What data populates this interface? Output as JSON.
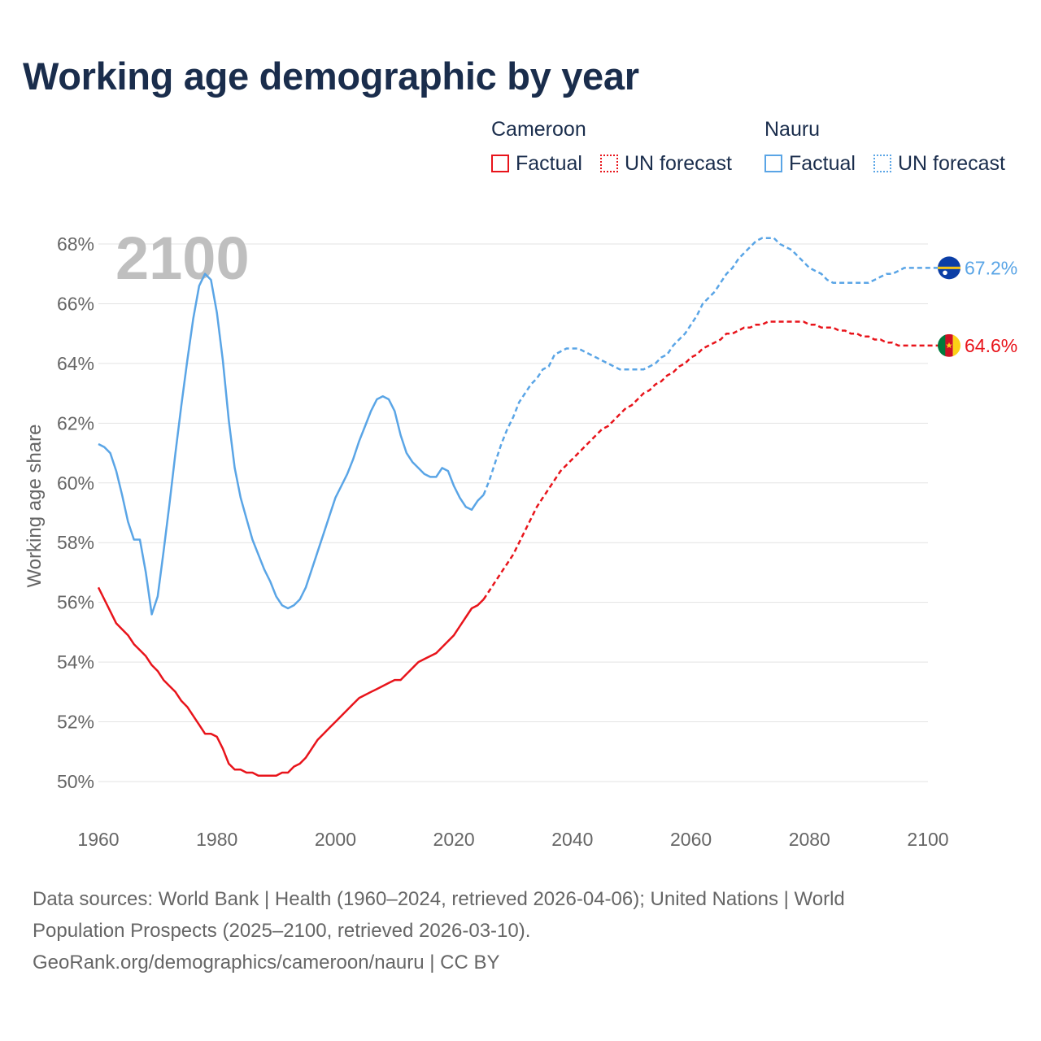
{
  "title": "Working age demographic by year",
  "legend": {
    "groups": [
      {
        "name": "Cameroon",
        "factual_label": "Factual",
        "forecast_label": "UN forecast"
      },
      {
        "name": "Nauru",
        "factual_label": "Factual",
        "forecast_label": "UN forecast"
      }
    ]
  },
  "footer": {
    "line1": "Data sources: World Bank | Health (1960–2024, retrieved 2026-04-06); United Nations | World",
    "line2": "Population Prospects (2025–2100, retrieved 2026-03-10).",
    "line3": "GeoRank.org/demographics/cameroon/nauru | CC BY"
  },
  "colors": {
    "cameroon": "#e8141b",
    "nauru": "#5aa5e6",
    "title": "#1a2d4c",
    "year_watermark": "#bfbfbf"
  },
  "chart_data": {
    "type": "line",
    "title": "Working age demographic by year",
    "ylabel": "Working age share",
    "xlabel": "",
    "year_label": "2100",
    "xlim": [
      1960,
      2100
    ],
    "ylim": [
      50,
      68
    ],
    "x_ticks": [
      "1960",
      "1980",
      "2000",
      "2020",
      "2040",
      "2060",
      "2080",
      "2100"
    ],
    "y_ticks": [
      "50%",
      "52%",
      "54%",
      "56%",
      "58%",
      "60%",
      "62%",
      "64%",
      "66%",
      "68%"
    ],
    "grid": true,
    "forecast_start": 2025,
    "series": [
      {
        "name": "Cameroon",
        "end_label": "64.6%",
        "points": [
          [
            1960,
            56.5
          ],
          [
            1961,
            56.1
          ],
          [
            1962,
            55.7
          ],
          [
            1963,
            55.3
          ],
          [
            1964,
            55.1
          ],
          [
            1965,
            54.9
          ],
          [
            1966,
            54.6
          ],
          [
            1967,
            54.4
          ],
          [
            1968,
            54.2
          ],
          [
            1969,
            53.9
          ],
          [
            1970,
            53.7
          ],
          [
            1971,
            53.4
          ],
          [
            1972,
            53.2
          ],
          [
            1973,
            53.0
          ],
          [
            1974,
            52.7
          ],
          [
            1975,
            52.5
          ],
          [
            1976,
            52.2
          ],
          [
            1977,
            51.9
          ],
          [
            1978,
            51.6
          ],
          [
            1979,
            51.6
          ],
          [
            1980,
            51.5
          ],
          [
            1981,
            51.1
          ],
          [
            1982,
            50.6
          ],
          [
            1983,
            50.4
          ],
          [
            1984,
            50.4
          ],
          [
            1985,
            50.3
          ],
          [
            1986,
            50.3
          ],
          [
            1987,
            50.2
          ],
          [
            1988,
            50.2
          ],
          [
            1989,
            50.2
          ],
          [
            1990,
            50.2
          ],
          [
            1991,
            50.3
          ],
          [
            1992,
            50.3
          ],
          [
            1993,
            50.5
          ],
          [
            1994,
            50.6
          ],
          [
            1995,
            50.8
          ],
          [
            1996,
            51.1
          ],
          [
            1997,
            51.4
          ],
          [
            1998,
            51.6
          ],
          [
            1999,
            51.8
          ],
          [
            2000,
            52.0
          ],
          [
            2001,
            52.2
          ],
          [
            2002,
            52.4
          ],
          [
            2003,
            52.6
          ],
          [
            2004,
            52.8
          ],
          [
            2005,
            52.9
          ],
          [
            2006,
            53.0
          ],
          [
            2007,
            53.1
          ],
          [
            2008,
            53.2
          ],
          [
            2009,
            53.3
          ],
          [
            2010,
            53.4
          ],
          [
            2011,
            53.4
          ],
          [
            2012,
            53.6
          ],
          [
            2013,
            53.8
          ],
          [
            2014,
            54.0
          ],
          [
            2015,
            54.1
          ],
          [
            2016,
            54.2
          ],
          [
            2017,
            54.3
          ],
          [
            2018,
            54.5
          ],
          [
            2019,
            54.7
          ],
          [
            2020,
            54.9
          ],
          [
            2021,
            55.2
          ],
          [
            2022,
            55.5
          ],
          [
            2023,
            55.8
          ],
          [
            2024,
            55.9
          ],
          [
            2025,
            56.1
          ],
          [
            2026,
            56.4
          ],
          [
            2027,
            56.7
          ],
          [
            2028,
            57.0
          ],
          [
            2029,
            57.3
          ],
          [
            2030,
            57.6
          ],
          [
            2031,
            58.0
          ],
          [
            2032,
            58.4
          ],
          [
            2033,
            58.8
          ],
          [
            2034,
            59.2
          ],
          [
            2035,
            59.5
          ],
          [
            2036,
            59.8
          ],
          [
            2037,
            60.1
          ],
          [
            2038,
            60.4
          ],
          [
            2039,
            60.6
          ],
          [
            2040,
            60.8
          ],
          [
            2041,
            61.0
          ],
          [
            2042,
            61.2
          ],
          [
            2043,
            61.4
          ],
          [
            2044,
            61.6
          ],
          [
            2045,
            61.8
          ],
          [
            2046,
            61.9
          ],
          [
            2047,
            62.1
          ],
          [
            2048,
            62.3
          ],
          [
            2049,
            62.5
          ],
          [
            2050,
            62.6
          ],
          [
            2051,
            62.8
          ],
          [
            2052,
            63.0
          ],
          [
            2053,
            63.1
          ],
          [
            2054,
            63.3
          ],
          [
            2055,
            63.4
          ],
          [
            2056,
            63.6
          ],
          [
            2057,
            63.7
          ],
          [
            2058,
            63.9
          ],
          [
            2059,
            64.0
          ],
          [
            2060,
            64.2
          ],
          [
            2061,
            64.3
          ],
          [
            2062,
            64.5
          ],
          [
            2063,
            64.6
          ],
          [
            2064,
            64.7
          ],
          [
            2065,
            64.8
          ],
          [
            2066,
            65.0
          ],
          [
            2067,
            65.0
          ],
          [
            2068,
            65.1
          ],
          [
            2069,
            65.2
          ],
          [
            2070,
            65.2
          ],
          [
            2071,
            65.3
          ],
          [
            2072,
            65.3
          ],
          [
            2073,
            65.4
          ],
          [
            2074,
            65.4
          ],
          [
            2075,
            65.4
          ],
          [
            2076,
            65.4
          ],
          [
            2077,
            65.4
          ],
          [
            2078,
            65.4
          ],
          [
            2079,
            65.4
          ],
          [
            2080,
            65.3
          ],
          [
            2081,
            65.3
          ],
          [
            2082,
            65.2
          ],
          [
            2083,
            65.2
          ],
          [
            2084,
            65.2
          ],
          [
            2085,
            65.1
          ],
          [
            2086,
            65.1
          ],
          [
            2087,
            65.0
          ],
          [
            2088,
            65.0
          ],
          [
            2089,
            64.9
          ],
          [
            2090,
            64.9
          ],
          [
            2091,
            64.8
          ],
          [
            2092,
            64.8
          ],
          [
            2093,
            64.7
          ],
          [
            2094,
            64.7
          ],
          [
            2095,
            64.6
          ],
          [
            2096,
            64.6
          ],
          [
            2097,
            64.6
          ],
          [
            2098,
            64.6
          ],
          [
            2099,
            64.6
          ],
          [
            2100,
            64.6
          ]
        ]
      },
      {
        "name": "Nauru",
        "end_label": "67.2%",
        "points": [
          [
            1960,
            61.3
          ],
          [
            1961,
            61.2
          ],
          [
            1962,
            61.0
          ],
          [
            1963,
            60.4
          ],
          [
            1964,
            59.6
          ],
          [
            1965,
            58.7
          ],
          [
            1966,
            58.1
          ],
          [
            1967,
            58.1
          ],
          [
            1968,
            57.0
          ],
          [
            1969,
            55.6
          ],
          [
            1970,
            56.2
          ],
          [
            1971,
            57.7
          ],
          [
            1972,
            59.3
          ],
          [
            1973,
            61.0
          ],
          [
            1974,
            62.6
          ],
          [
            1975,
            64.1
          ],
          [
            1976,
            65.5
          ],
          [
            1977,
            66.6
          ],
          [
            1978,
            67.0
          ],
          [
            1979,
            66.8
          ],
          [
            1980,
            65.7
          ],
          [
            1981,
            64.1
          ],
          [
            1982,
            62.1
          ],
          [
            1983,
            60.5
          ],
          [
            1984,
            59.5
          ],
          [
            1985,
            58.8
          ],
          [
            1986,
            58.1
          ],
          [
            1987,
            57.6
          ],
          [
            1988,
            57.1
          ],
          [
            1989,
            56.7
          ],
          [
            1990,
            56.2
          ],
          [
            1991,
            55.9
          ],
          [
            1992,
            55.8
          ],
          [
            1993,
            55.9
          ],
          [
            1994,
            56.1
          ],
          [
            1995,
            56.5
          ],
          [
            1996,
            57.1
          ],
          [
            1997,
            57.7
          ],
          [
            1998,
            58.3
          ],
          [
            1999,
            58.9
          ],
          [
            2000,
            59.5
          ],
          [
            2001,
            59.9
          ],
          [
            2002,
            60.3
          ],
          [
            2003,
            60.8
          ],
          [
            2004,
            61.4
          ],
          [
            2005,
            61.9
          ],
          [
            2006,
            62.4
          ],
          [
            2007,
            62.8
          ],
          [
            2008,
            62.9
          ],
          [
            2009,
            62.8
          ],
          [
            2010,
            62.4
          ],
          [
            2011,
            61.6
          ],
          [
            2012,
            61.0
          ],
          [
            2013,
            60.7
          ],
          [
            2014,
            60.5
          ],
          [
            2015,
            60.3
          ],
          [
            2016,
            60.2
          ],
          [
            2017,
            60.2
          ],
          [
            2018,
            60.5
          ],
          [
            2019,
            60.4
          ],
          [
            2020,
            59.9
          ],
          [
            2021,
            59.5
          ],
          [
            2022,
            59.2
          ],
          [
            2023,
            59.1
          ],
          [
            2024,
            59.4
          ],
          [
            2025,
            59.6
          ],
          [
            2026,
            60.1
          ],
          [
            2027,
            60.7
          ],
          [
            2028,
            61.3
          ],
          [
            2029,
            61.8
          ],
          [
            2030,
            62.2
          ],
          [
            2031,
            62.7
          ],
          [
            2032,
            63.0
          ],
          [
            2033,
            63.3
          ],
          [
            2034,
            63.5
          ],
          [
            2035,
            63.8
          ],
          [
            2036,
            63.9
          ],
          [
            2037,
            64.3
          ],
          [
            2038,
            64.4
          ],
          [
            2039,
            64.5
          ],
          [
            2040,
            64.5
          ],
          [
            2041,
            64.5
          ],
          [
            2042,
            64.4
          ],
          [
            2043,
            64.3
          ],
          [
            2044,
            64.2
          ],
          [
            2045,
            64.1
          ],
          [
            2046,
            64.0
          ],
          [
            2047,
            63.9
          ],
          [
            2048,
            63.8
          ],
          [
            2049,
            63.8
          ],
          [
            2050,
            63.8
          ],
          [
            2051,
            63.8
          ],
          [
            2052,
            63.8
          ],
          [
            2053,
            63.9
          ],
          [
            2054,
            64.0
          ],
          [
            2055,
            64.2
          ],
          [
            2056,
            64.3
          ],
          [
            2057,
            64.6
          ],
          [
            2058,
            64.8
          ],
          [
            2059,
            65.0
          ],
          [
            2060,
            65.3
          ],
          [
            2061,
            65.6
          ],
          [
            2062,
            66.0
          ],
          [
            2063,
            66.2
          ],
          [
            2064,
            66.4
          ],
          [
            2065,
            66.7
          ],
          [
            2066,
            67.0
          ],
          [
            2067,
            67.2
          ],
          [
            2068,
            67.5
          ],
          [
            2069,
            67.7
          ],
          [
            2070,
            67.9
          ],
          [
            2071,
            68.1
          ],
          [
            2072,
            68.2
          ],
          [
            2073,
            68.2
          ],
          [
            2074,
            68.2
          ],
          [
            2075,
            68.0
          ],
          [
            2076,
            67.9
          ],
          [
            2077,
            67.8
          ],
          [
            2078,
            67.6
          ],
          [
            2079,
            67.4
          ],
          [
            2080,
            67.2
          ],
          [
            2081,
            67.1
          ],
          [
            2082,
            67.0
          ],
          [
            2083,
            66.8
          ],
          [
            2084,
            66.7
          ],
          [
            2085,
            66.7
          ],
          [
            2086,
            66.7
          ],
          [
            2087,
            66.7
          ],
          [
            2088,
            66.7
          ],
          [
            2089,
            66.7
          ],
          [
            2090,
            66.7
          ],
          [
            2091,
            66.8
          ],
          [
            2092,
            66.9
          ],
          [
            2093,
            67.0
          ],
          [
            2094,
            67.0
          ],
          [
            2095,
            67.1
          ],
          [
            2096,
            67.2
          ],
          [
            2097,
            67.2
          ],
          [
            2098,
            67.2
          ],
          [
            2099,
            67.2
          ],
          [
            2100,
            67.2
          ]
        ]
      }
    ]
  }
}
